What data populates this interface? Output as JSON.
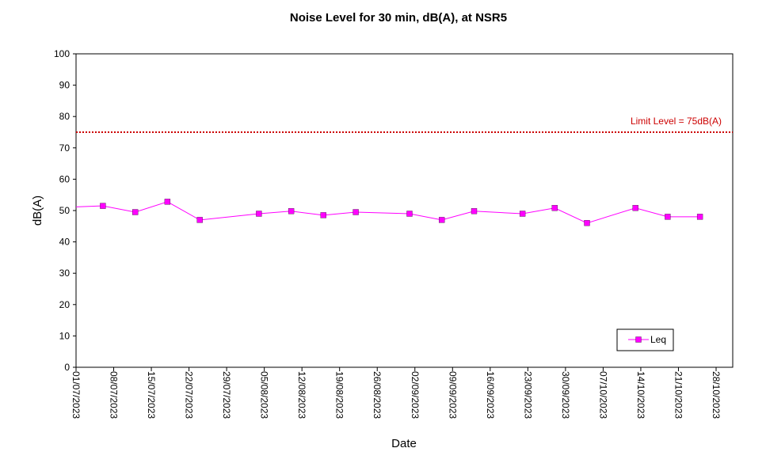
{
  "chart_data": {
    "type": "line",
    "title": "Noise Level for 30 min, dB(A), at NSR5",
    "xlabel": "Date",
    "ylabel": "dB(A)",
    "ylim": [
      0,
      100
    ],
    "yticks": [
      0,
      10,
      20,
      30,
      40,
      50,
      60,
      70,
      80,
      90,
      100
    ],
    "xlim": [
      "2023-07-01",
      "2023-10-28"
    ],
    "xtick_labels": [
      "01/07/2023",
      "08/07/2023",
      "15/07/2023",
      "22/07/2023",
      "29/07/2023",
      "05/08/2023",
      "12/08/2023",
      "19/08/2023",
      "26/08/2023",
      "02/09/2023",
      "09/09/2023",
      "16/09/2023",
      "23/09/2023",
      "30/09/2023",
      "07/10/2023",
      "14/10/2023",
      "21/10/2023",
      "28/10/2023"
    ],
    "limit": {
      "label": "Limit Level  = 75dB(A)",
      "value": 75,
      "color": "#cc0000"
    },
    "legend": {
      "position": "bottom-right"
    },
    "grid": false,
    "series": [
      {
        "name": "Leq",
        "color": "#ff00ff",
        "x": [
          "2023-07-06",
          "2023-07-12",
          "2023-07-18",
          "2023-07-24",
          "2023-08-04",
          "2023-08-10",
          "2023-08-16",
          "2023-08-22",
          "2023-09-01",
          "2023-09-07",
          "2023-09-13",
          "2023-09-22",
          "2023-09-28",
          "2023-10-04",
          "2023-10-13",
          "2023-10-19",
          "2023-10-25"
        ],
        "values": [
          51.5,
          49.5,
          52.8,
          47.0,
          49.0,
          49.8,
          48.5,
          49.5,
          49.0,
          47.0,
          49.8,
          49.0,
          50.8,
          46.0,
          50.8,
          48.0,
          48.0
        ]
      }
    ]
  }
}
